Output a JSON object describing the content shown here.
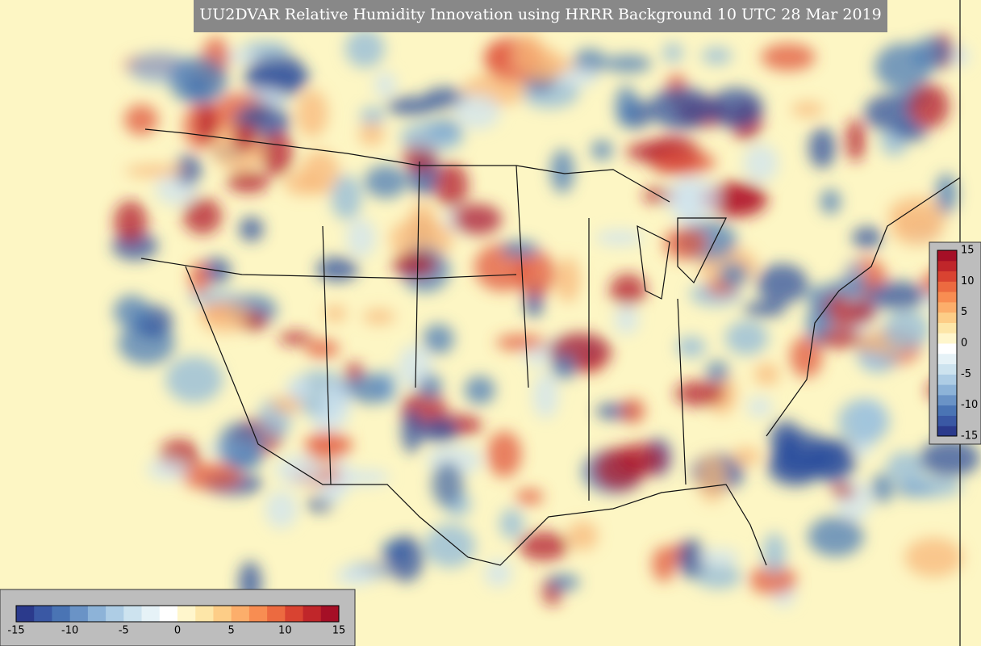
{
  "title": "UU2DVAR Relative Humidity Innovation using HRRR Background 10 UTC 28 Mar 2019",
  "colorbars": [
    {
      "ticks": [
        -15,
        -10,
        -5,
        0,
        5,
        10,
        15
      ]
    },
    {
      "ticks": [
        15,
        10,
        5,
        0,
        -5,
        -10,
        -15
      ]
    }
  ]
}
